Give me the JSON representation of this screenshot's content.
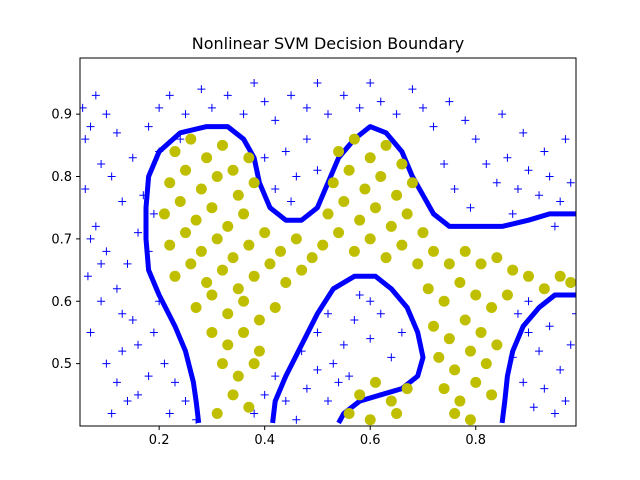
{
  "chart_data": {
    "type": "scatter",
    "title": "Nonlinear SVM Decision Boundary",
    "xlabel": "",
    "ylabel": "",
    "xlim": [
      0.05,
      0.99
    ],
    "ylim": [
      0.4,
      0.99
    ],
    "x_ticks": [
      "0.2",
      "0.4",
      "0.6",
      "0.8"
    ],
    "x_tick_values": [
      0.2,
      0.4,
      0.6,
      0.8
    ],
    "y_ticks": [
      "0.5",
      "0.6",
      "0.7",
      "0.8",
      "0.9"
    ],
    "y_tick_values": [
      0.5,
      0.6,
      0.7,
      0.8,
      0.9
    ],
    "grid": false,
    "legend": "none",
    "colors": {
      "negative": "#0000ff",
      "positive": "#bfbf00",
      "boundary": "#0000ff"
    },
    "series": [
      {
        "marker": "plus",
        "color": "#0000ff",
        "points": [
          [
            0.055,
            0.91
          ],
          [
            0.07,
            0.88
          ],
          [
            0.09,
            0.82
          ],
          [
            0.06,
            0.78
          ],
          [
            0.08,
            0.72
          ],
          [
            0.1,
            0.68
          ],
          [
            0.065,
            0.64
          ],
          [
            0.09,
            0.6
          ],
          [
            0.07,
            0.55
          ],
          [
            0.1,
            0.5
          ],
          [
            0.12,
            0.47
          ],
          [
            0.14,
            0.44
          ],
          [
            0.11,
            0.42
          ],
          [
            0.16,
            0.45
          ],
          [
            0.13,
            0.52
          ],
          [
            0.15,
            0.57
          ],
          [
            0.12,
            0.62
          ],
          [
            0.14,
            0.66
          ],
          [
            0.16,
            0.71
          ],
          [
            0.13,
            0.76
          ],
          [
            0.11,
            0.8
          ],
          [
            0.15,
            0.83
          ],
          [
            0.12,
            0.87
          ],
          [
            0.1,
            0.9
          ],
          [
            0.18,
            0.88
          ],
          [
            0.2,
            0.91
          ],
          [
            0.22,
            0.93
          ],
          [
            0.25,
            0.9
          ],
          [
            0.28,
            0.94
          ],
          [
            0.3,
            0.91
          ],
          [
            0.33,
            0.93
          ],
          [
            0.36,
            0.9
          ],
          [
            0.38,
            0.95
          ],
          [
            0.4,
            0.92
          ],
          [
            0.42,
            0.89
          ],
          [
            0.45,
            0.93
          ],
          [
            0.48,
            0.91
          ],
          [
            0.5,
            0.95
          ],
          [
            0.52,
            0.9
          ],
          [
            0.55,
            0.93
          ],
          [
            0.58,
            0.91
          ],
          [
            0.6,
            0.95
          ],
          [
            0.62,
            0.92
          ],
          [
            0.65,
            0.9
          ],
          [
            0.68,
            0.94
          ],
          [
            0.7,
            0.91
          ],
          [
            0.72,
            0.88
          ],
          [
            0.75,
            0.92
          ],
          [
            0.78,
            0.89
          ],
          [
            0.8,
            0.86
          ],
          [
            0.82,
            0.82
          ],
          [
            0.84,
            0.79
          ],
          [
            0.86,
            0.83
          ],
          [
            0.88,
            0.78
          ],
          [
            0.9,
            0.81
          ],
          [
            0.92,
            0.77
          ],
          [
            0.94,
            0.8
          ],
          [
            0.96,
            0.76
          ],
          [
            0.98,
            0.79
          ],
          [
            0.93,
            0.84
          ],
          [
            0.97,
            0.86
          ],
          [
            0.89,
            0.87
          ],
          [
            0.85,
            0.9
          ],
          [
            0.87,
            0.74
          ],
          [
            0.95,
            0.72
          ],
          [
            0.79,
            0.75
          ],
          [
            0.76,
            0.78
          ],
          [
            0.74,
            0.82
          ],
          [
            0.44,
            0.84
          ],
          [
            0.46,
            0.8
          ],
          [
            0.42,
            0.78
          ],
          [
            0.48,
            0.86
          ],
          [
            0.4,
            0.83
          ],
          [
            0.5,
            0.81
          ],
          [
            0.45,
            0.76
          ],
          [
            0.24,
            0.86
          ],
          [
            0.2,
            0.84
          ],
          [
            0.17,
            0.77
          ],
          [
            0.19,
            0.74
          ],
          [
            0.18,
            0.68
          ],
          [
            0.2,
            0.6
          ],
          [
            0.19,
            0.55
          ],
          [
            0.21,
            0.5
          ],
          [
            0.23,
            0.47
          ],
          [
            0.25,
            0.44
          ],
          [
            0.22,
            0.42
          ],
          [
            0.27,
            0.41
          ],
          [
            0.18,
            0.48
          ],
          [
            0.16,
            0.53
          ],
          [
            0.13,
            0.58
          ],
          [
            0.09,
            0.66
          ],
          [
            0.07,
            0.7
          ],
          [
            0.06,
            0.86
          ],
          [
            0.08,
            0.93
          ],
          [
            0.38,
            0.42
          ],
          [
            0.4,
            0.45
          ],
          [
            0.42,
            0.48
          ],
          [
            0.44,
            0.44
          ],
          [
            0.46,
            0.41
          ],
          [
            0.48,
            0.46
          ],
          [
            0.5,
            0.49
          ],
          [
            0.52,
            0.44
          ],
          [
            0.54,
            0.47
          ],
          [
            0.47,
            0.52
          ],
          [
            0.5,
            0.55
          ],
          [
            0.52,
            0.58
          ],
          [
            0.55,
            0.53
          ],
          [
            0.57,
            0.57
          ],
          [
            0.6,
            0.54
          ],
          [
            0.62,
            0.58
          ],
          [
            0.64,
            0.51
          ],
          [
            0.66,
            0.55
          ],
          [
            0.58,
            0.61
          ],
          [
            0.6,
            0.6
          ],
          [
            0.53,
            0.5
          ],
          [
            0.56,
            0.48
          ],
          [
            0.88,
            0.58
          ],
          [
            0.9,
            0.55
          ],
          [
            0.92,
            0.52
          ],
          [
            0.94,
            0.56
          ],
          [
            0.96,
            0.49
          ],
          [
            0.98,
            0.53
          ],
          [
            0.89,
            0.47
          ],
          [
            0.91,
            0.43
          ],
          [
            0.93,
            0.46
          ],
          [
            0.95,
            0.42
          ],
          [
            0.97,
            0.44
          ],
          [
            0.87,
            0.51
          ],
          [
            0.99,
            0.58
          ],
          [
            0.9,
            0.6
          ]
        ]
      },
      {
        "marker": "circle",
        "color": "#bfbf00",
        "points": [
          [
            0.23,
            0.84
          ],
          [
            0.26,
            0.86
          ],
          [
            0.29,
            0.83
          ],
          [
            0.32,
            0.85
          ],
          [
            0.34,
            0.81
          ],
          [
            0.37,
            0.83
          ],
          [
            0.22,
            0.79
          ],
          [
            0.25,
            0.81
          ],
          [
            0.28,
            0.78
          ],
          [
            0.31,
            0.8
          ],
          [
            0.35,
            0.77
          ],
          [
            0.38,
            0.79
          ],
          [
            0.21,
            0.74
          ],
          [
            0.24,
            0.76
          ],
          [
            0.27,
            0.73
          ],
          [
            0.3,
            0.75
          ],
          [
            0.33,
            0.72
          ],
          [
            0.36,
            0.74
          ],
          [
            0.22,
            0.69
          ],
          [
            0.25,
            0.71
          ],
          [
            0.28,
            0.68
          ],
          [
            0.31,
            0.7
          ],
          [
            0.34,
            0.67
          ],
          [
            0.37,
            0.69
          ],
          [
            0.4,
            0.71
          ],
          [
            0.43,
            0.68
          ],
          [
            0.46,
            0.7
          ],
          [
            0.49,
            0.67
          ],
          [
            0.23,
            0.64
          ],
          [
            0.26,
            0.66
          ],
          [
            0.29,
            0.63
          ],
          [
            0.32,
            0.65
          ],
          [
            0.35,
            0.62
          ],
          [
            0.38,
            0.64
          ],
          [
            0.41,
            0.66
          ],
          [
            0.44,
            0.63
          ],
          [
            0.47,
            0.65
          ],
          [
            0.27,
            0.59
          ],
          [
            0.3,
            0.61
          ],
          [
            0.33,
            0.58
          ],
          [
            0.36,
            0.6
          ],
          [
            0.39,
            0.57
          ],
          [
            0.42,
            0.59
          ],
          [
            0.3,
            0.55
          ],
          [
            0.33,
            0.53
          ],
          [
            0.36,
            0.55
          ],
          [
            0.39,
            0.52
          ],
          [
            0.32,
            0.5
          ],
          [
            0.35,
            0.48
          ],
          [
            0.38,
            0.5
          ],
          [
            0.34,
            0.45
          ],
          [
            0.37,
            0.43
          ],
          [
            0.31,
            0.42
          ],
          [
            0.54,
            0.84
          ],
          [
            0.57,
            0.86
          ],
          [
            0.6,
            0.83
          ],
          [
            0.63,
            0.85
          ],
          [
            0.66,
            0.82
          ],
          [
            0.53,
            0.79
          ],
          [
            0.56,
            0.81
          ],
          [
            0.59,
            0.78
          ],
          [
            0.62,
            0.8
          ],
          [
            0.65,
            0.77
          ],
          [
            0.68,
            0.79
          ],
          [
            0.52,
            0.74
          ],
          [
            0.55,
            0.76
          ],
          [
            0.58,
            0.73
          ],
          [
            0.61,
            0.75
          ],
          [
            0.64,
            0.72
          ],
          [
            0.67,
            0.74
          ],
          [
            0.7,
            0.71
          ],
          [
            0.51,
            0.69
          ],
          [
            0.54,
            0.71
          ],
          [
            0.57,
            0.68
          ],
          [
            0.6,
            0.7
          ],
          [
            0.63,
            0.67
          ],
          [
            0.66,
            0.69
          ],
          [
            0.69,
            0.66
          ],
          [
            0.72,
            0.68
          ],
          [
            0.75,
            0.66
          ],
          [
            0.78,
            0.68
          ],
          [
            0.81,
            0.66
          ],
          [
            0.84,
            0.67
          ],
          [
            0.87,
            0.65
          ],
          [
            0.9,
            0.64
          ],
          [
            0.93,
            0.62
          ],
          [
            0.96,
            0.64
          ],
          [
            0.98,
            0.63
          ],
          [
            0.71,
            0.62
          ],
          [
            0.74,
            0.6
          ],
          [
            0.77,
            0.63
          ],
          [
            0.8,
            0.61
          ],
          [
            0.83,
            0.59
          ],
          [
            0.86,
            0.61
          ],
          [
            0.72,
            0.56
          ],
          [
            0.75,
            0.54
          ],
          [
            0.78,
            0.57
          ],
          [
            0.81,
            0.55
          ],
          [
            0.84,
            0.53
          ],
          [
            0.73,
            0.51
          ],
          [
            0.76,
            0.49
          ],
          [
            0.79,
            0.52
          ],
          [
            0.82,
            0.5
          ],
          [
            0.74,
            0.46
          ],
          [
            0.77,
            0.44
          ],
          [
            0.8,
            0.47
          ],
          [
            0.83,
            0.45
          ],
          [
            0.76,
            0.42
          ],
          [
            0.79,
            0.41
          ],
          [
            0.58,
            0.45
          ],
          [
            0.61,
            0.47
          ],
          [
            0.64,
            0.44
          ],
          [
            0.67,
            0.46
          ],
          [
            0.56,
            0.42
          ],
          [
            0.6,
            0.41
          ],
          [
            0.65,
            0.42
          ]
        ]
      }
    ],
    "boundary_paths": [
      [
        [
          0.275,
          0.405
        ],
        [
          0.27,
          0.44
        ],
        [
          0.265,
          0.47
        ],
        [
          0.25,
          0.52
        ],
        [
          0.23,
          0.56
        ],
        [
          0.2,
          0.61
        ],
        [
          0.18,
          0.65
        ],
        [
          0.175,
          0.7
        ],
        [
          0.175,
          0.75
        ],
        [
          0.18,
          0.8
        ],
        [
          0.2,
          0.84
        ],
        [
          0.24,
          0.87
        ],
        [
          0.29,
          0.88
        ],
        [
          0.33,
          0.88
        ],
        [
          0.36,
          0.86
        ],
        [
          0.38,
          0.83
        ],
        [
          0.39,
          0.79
        ],
        [
          0.41,
          0.75
        ],
        [
          0.44,
          0.73
        ],
        [
          0.47,
          0.73
        ],
        [
          0.5,
          0.75
        ],
        [
          0.52,
          0.79
        ],
        [
          0.54,
          0.83
        ],
        [
          0.57,
          0.86
        ],
        [
          0.6,
          0.88
        ],
        [
          0.63,
          0.87
        ],
        [
          0.66,
          0.84
        ],
        [
          0.68,
          0.8
        ],
        [
          0.7,
          0.77
        ],
        [
          0.72,
          0.74
        ],
        [
          0.75,
          0.72
        ],
        [
          0.8,
          0.72
        ],
        [
          0.85,
          0.72
        ],
        [
          0.9,
          0.73
        ],
        [
          0.94,
          0.74
        ],
        [
          0.99,
          0.74
        ]
      ],
      [
        [
          0.415,
          0.405
        ],
        [
          0.42,
          0.44
        ],
        [
          0.44,
          0.48
        ],
        [
          0.47,
          0.53
        ],
        [
          0.5,
          0.58
        ],
        [
          0.53,
          0.62
        ],
        [
          0.57,
          0.64
        ],
        [
          0.61,
          0.64
        ],
        [
          0.64,
          0.62
        ],
        [
          0.67,
          0.59
        ],
        [
          0.69,
          0.55
        ],
        [
          0.7,
          0.51
        ],
        [
          0.69,
          0.48
        ],
        [
          0.66,
          0.46
        ],
        [
          0.62,
          0.45
        ],
        [
          0.58,
          0.44
        ],
        [
          0.55,
          0.42
        ],
        [
          0.54,
          0.405
        ]
      ],
      [
        [
          0.85,
          0.405
        ],
        [
          0.855,
          0.44
        ],
        [
          0.86,
          0.48
        ],
        [
          0.87,
          0.52
        ],
        [
          0.89,
          0.56
        ],
        [
          0.92,
          0.59
        ],
        [
          0.95,
          0.61
        ],
        [
          0.99,
          0.61
        ]
      ]
    ]
  }
}
